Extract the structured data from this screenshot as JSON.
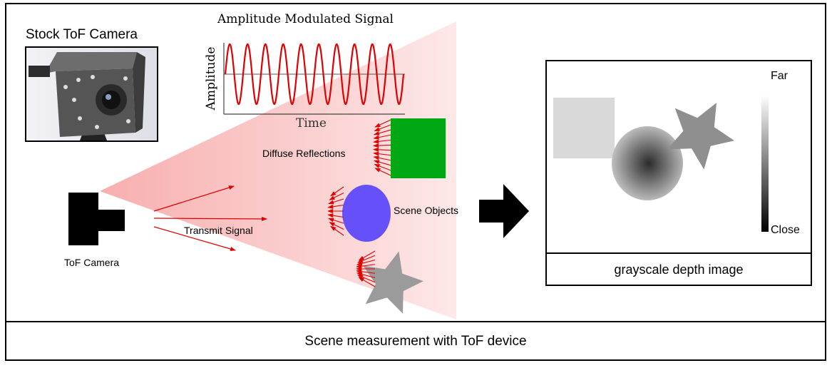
{
  "photo": {
    "title": "Stock ToF Camera"
  },
  "signal_plot": {
    "title": "Amplitude Modulated Signal",
    "xlabel": "Time",
    "ylabel": "Amplitude",
    "cycles": 10,
    "color": "#e00000"
  },
  "scene": {
    "camera_label": "ToF Camera",
    "transmit_label": "Transmit Signal",
    "diffuse_label": "Diffuse Reflections",
    "objects_label": "Scene Objects",
    "beam_color": "#f9b4b4",
    "arrow_color": "#e00000",
    "objects": [
      {
        "shape": "square",
        "color": "#00a814"
      },
      {
        "shape": "ellipse",
        "color": "#6650fa"
      },
      {
        "shape": "star",
        "color": "#9b9b9b"
      }
    ]
  },
  "depth_image": {
    "caption": "grayscale depth image",
    "scale_top": "Far",
    "scale_bottom": "Close",
    "objects": [
      {
        "shape": "square",
        "gray": "#d9d9d9"
      },
      {
        "shape": "ellipse",
        "gray": "radial"
      },
      {
        "shape": "star",
        "gray": "#8f8f8f"
      }
    ]
  },
  "footer": {
    "caption": "Scene measurement with ToF device"
  }
}
